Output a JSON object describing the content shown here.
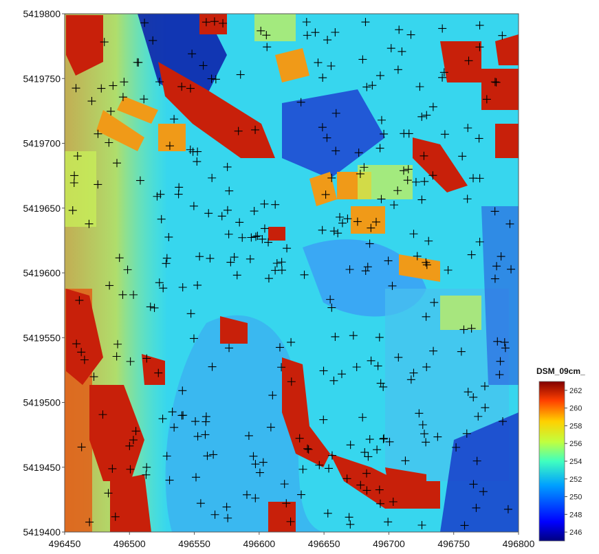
{
  "map": {
    "x_axis": {
      "min": 496450,
      "max": 496800,
      "ticks": [
        "496450",
        "496500",
        "496550",
        "496600",
        "496650",
        "496700",
        "496750",
        "496800"
      ]
    },
    "y_axis": {
      "min": 5419400,
      "max": 5419800,
      "ticks": [
        "5419800",
        "5419750",
        "5419700",
        "5419650",
        "5419600",
        "5419550",
        "5419500",
        "5419450",
        "5419400"
      ]
    },
    "raster": "DSM elevation (jet colormap)",
    "markers": "survey point crosses"
  },
  "legend": {
    "title": "DSM_09cm_",
    "min": 245,
    "max": 263,
    "ticks": [
      "262",
      "260",
      "258",
      "256",
      "254",
      "252",
      "250",
      "248",
      "246"
    ]
  },
  "colors": {
    "colormap": [
      "#00007f",
      "#0000ff",
      "#007fff",
      "#00ffff",
      "#7fff7f",
      "#ffff00",
      "#ff7f00",
      "#ff0000",
      "#7f0000"
    ],
    "marker": "#000000",
    "frame": "#555555"
  }
}
